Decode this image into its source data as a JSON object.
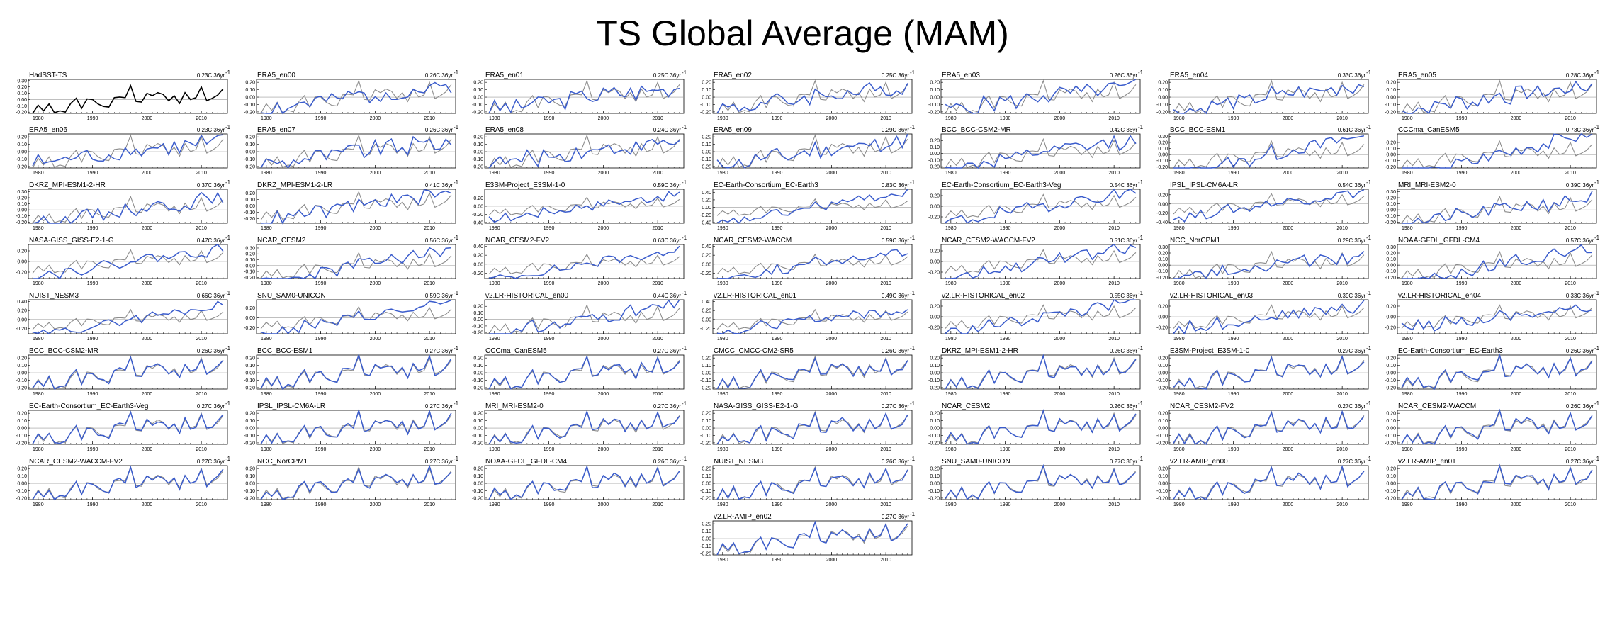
{
  "figure": {
    "title": "TS Global Average (MAM)"
  },
  "colors": {
    "observation": "#000000",
    "model": "#3a5ccc",
    "reference": "#8c8c8c",
    "zero_line": "#999999"
  },
  "chart_data": {
    "type": "line",
    "x": [
      1979,
      1980,
      1981,
      1982,
      1983,
      1984,
      1985,
      1986,
      1987,
      1988,
      1989,
      1990,
      1991,
      1992,
      1993,
      1994,
      1995,
      1996,
      1997,
      1998,
      1999,
      2000,
      2001,
      2002,
      2003,
      2004,
      2005,
      2006,
      2007,
      2008,
      2009,
      2010,
      2011,
      2012,
      2013,
      2014
    ],
    "x_ticks": [
      "1980",
      "1990",
      "2000",
      "2010"
    ],
    "x_tick_values": [
      1980,
      1990,
      2000,
      2010
    ],
    "reference": {
      "name": "HadSST-TS",
      "values": [
        -0.22,
        -0.09,
        -0.18,
        -0.07,
        -0.21,
        -0.18,
        -0.2,
        -0.06,
        0.02,
        -0.14,
        0.01,
        0.0,
        -0.07,
        -0.11,
        -0.12,
        0.03,
        0.04,
        0.03,
        0.22,
        -0.03,
        -0.04,
        0.1,
        0.06,
        0.11,
        0.08,
        -0.02,
        0.06,
        -0.06,
        0.11,
        0.0,
        0.03,
        0.2,
        -0.02,
        0.02,
        0.07,
        0.17
      ]
    },
    "panels": [
      {
        "title": "HadSST-TS",
        "trend": "0.23C 36yr",
        "yticks": [
          "0.30",
          "0.20",
          "0.10",
          "0.00",
          "-0.10",
          "-0.20"
        ],
        "ylim": [
          -0.22,
          0.32
        ],
        "obs": true,
        "model_trend": 0.23,
        "seed": 0,
        "offset": 0.0
      },
      {
        "title": "ERA5_en00",
        "trend": "0.26C 36yr",
        "yticks": [
          "0.20",
          "0.10",
          "0.00",
          "-0.10",
          "-0.20"
        ],
        "ylim": [
          -0.22,
          0.24
        ],
        "model_trend": 0.26,
        "seed": 1
      },
      {
        "title": "ERA5_en01",
        "trend": "0.25C 36yr",
        "yticks": [
          "0.20",
          "0.10",
          "0.00",
          "-0.10",
          "-0.20"
        ],
        "ylim": [
          -0.22,
          0.24
        ],
        "model_trend": 0.25,
        "seed": 2
      },
      {
        "title": "ERA5_en02",
        "trend": "0.25C 36yr",
        "yticks": [
          "0.20",
          "0.10",
          "0.00",
          "-0.10",
          "-0.20"
        ],
        "ylim": [
          -0.22,
          0.24
        ],
        "model_trend": 0.25,
        "seed": 3
      },
      {
        "title": "ERA5_en03",
        "trend": "0.26C 36yr",
        "yticks": [
          "0.20",
          "0.10",
          "0.00",
          "-0.10",
          "-0.20"
        ],
        "ylim": [
          -0.22,
          0.24
        ],
        "model_trend": 0.26,
        "seed": 4
      },
      {
        "title": "ERA5_en04",
        "trend": "0.33C 36yr",
        "yticks": [
          "0.20",
          "0.10",
          "0.00",
          "-0.10",
          "-0.20"
        ],
        "ylim": [
          -0.22,
          0.24
        ],
        "model_trend": 0.33,
        "seed": 5
      },
      {
        "title": "ERA5_en05",
        "trend": "0.28C 36yr",
        "yticks": [
          "0.20",
          "0.10",
          "0.00",
          "-0.10",
          "-0.20"
        ],
        "ylim": [
          -0.22,
          0.24
        ],
        "model_trend": 0.28,
        "seed": 6
      },
      {
        "title": "ERA5_en06",
        "trend": "0.23C 36yr",
        "yticks": [
          "0.20",
          "0.10",
          "0.00",
          "-0.10",
          "-0.20"
        ],
        "ylim": [
          -0.22,
          0.24
        ],
        "model_trend": 0.23,
        "seed": 7
      },
      {
        "title": "ERA5_en07",
        "trend": "0.26C 36yr",
        "yticks": [
          "0.20",
          "0.10",
          "0.00",
          "-0.10",
          "-0.20"
        ],
        "ylim": [
          -0.22,
          0.24
        ],
        "model_trend": 0.26,
        "seed": 8
      },
      {
        "title": "ERA5_en08",
        "trend": "0.24C 36yr",
        "yticks": [
          "0.20",
          "0.10",
          "0.00",
          "-0.10",
          "-0.20"
        ],
        "ylim": [
          -0.22,
          0.24
        ],
        "model_trend": 0.24,
        "seed": 9
      },
      {
        "title": "ERA5_en09",
        "trend": "0.29C 36yr",
        "yticks": [
          "0.20",
          "0.10",
          "0.00",
          "-0.10",
          "-0.20"
        ],
        "ylim": [
          -0.22,
          0.24
        ],
        "model_trend": 0.29,
        "seed": 10
      },
      {
        "title": "BCC_BCC-CSM2-MR",
        "trend": "0.42C 36yr",
        "yticks": [
          "0.20",
          "0.10",
          "0.00",
          "-0.10",
          "-0.20"
        ],
        "ylim": [
          -0.22,
          0.3
        ],
        "model_trend": 0.42,
        "seed": 11
      },
      {
        "title": "BCC_BCC-ESM1",
        "trend": "0.61C 36yr",
        "yticks": [
          "0.30",
          "0.20",
          "0.10",
          "0.00",
          "-0.10",
          "-0.20"
        ],
        "ylim": [
          -0.22,
          0.34
        ],
        "model_trend": 0.61,
        "seed": 12
      },
      {
        "title": "CCCma_CanESM5",
        "trend": "0.73C 36yr",
        "yticks": [
          "0.20",
          "0.10",
          "0.00",
          "-0.10",
          "-0.20"
        ],
        "ylim": [
          -0.22,
          0.34
        ],
        "model_trend": 0.73,
        "seed": 13
      },
      {
        "title": "DKRZ_MPI-ESM1-2-HR",
        "trend": "0.37C 36yr",
        "yticks": [
          "0.30",
          "0.20",
          "0.10",
          "0.00",
          "-0.10",
          "-0.20"
        ],
        "ylim": [
          -0.22,
          0.34
        ],
        "model_trend": 0.37,
        "seed": 14
      },
      {
        "title": "DKRZ_MPI-ESM1-2-LR",
        "trend": "0.41C 36yr",
        "yticks": [
          "0.20",
          "0.10",
          "0.00",
          "-0.10",
          "-0.20"
        ],
        "ylim": [
          -0.27,
          0.26
        ],
        "model_trend": 0.41,
        "seed": 15
      },
      {
        "title": "E3SM-Project_E3SM-1-0",
        "trend": "0.59C 36yr",
        "yticks": [
          "0.20",
          "0.00",
          "-0.20",
          "-0.40"
        ],
        "ylim": [
          -0.42,
          0.42
        ],
        "model_trend": 0.59,
        "seed": 16
      },
      {
        "title": "EC-Earth-Consortium_EC-Earth3",
        "trend": "0.83C 36yr",
        "yticks": [
          "0.40",
          "0.20",
          "0.00",
          "-0.20",
          "-0.40"
        ],
        "ylim": [
          -0.42,
          0.48
        ],
        "model_trend": 0.83,
        "seed": 17
      },
      {
        "title": "EC-Earth-Consortium_EC-Earth3-Veg",
        "trend": "0.54C 36yr",
        "yticks": [
          "0.20",
          "0.00",
          "-0.20"
        ],
        "ylim": [
          -0.32,
          0.32
        ],
        "model_trend": 0.54,
        "seed": 18
      },
      {
        "title": "IPSL_IPSL-CM6A-LR",
        "trend": "0.54C 36yr",
        "yticks": [
          "0.20",
          "0.00",
          "-0.20",
          "-0.40"
        ],
        "ylim": [
          -0.42,
          0.32
        ],
        "model_trend": 0.54,
        "seed": 19
      },
      {
        "title": "MRI_MRI-ESM2-0",
        "trend": "0.39C 36yr",
        "yticks": [
          "0.30",
          "0.20",
          "0.10",
          "0.00",
          "-0.10",
          "-0.20"
        ],
        "ylim": [
          -0.22,
          0.34
        ],
        "model_trend": 0.39,
        "seed": 20
      },
      {
        "title": "NASA-GISS_GISS-E2-1-G",
        "trend": "0.47C 36yr",
        "yticks": [
          "0.20",
          "0.00",
          "-0.20"
        ],
        "ylim": [
          -0.32,
          0.32
        ],
        "model_trend": 0.47,
        "seed": 21
      },
      {
        "title": "NCAR_CESM2",
        "trend": "0.56C 36yr",
        "yticks": [
          "0.30",
          "0.20",
          "0.10",
          "0.00",
          "-0.10",
          "-0.20"
        ],
        "ylim": [
          -0.22,
          0.36
        ],
        "model_trend": 0.56,
        "seed": 22
      },
      {
        "title": "NCAR_CESM2-FV2",
        "trend": "0.63C 36yr",
        "yticks": [
          "0.40",
          "0.20",
          "0.00",
          "-0.20"
        ],
        "ylim": [
          -0.32,
          0.44
        ],
        "model_trend": 0.63,
        "seed": 23
      },
      {
        "title": "NCAR_CESM2-WACCM",
        "trend": "0.59C 36yr",
        "yticks": [
          "0.40",
          "0.20",
          "0.00",
          "-0.20"
        ],
        "ylim": [
          -0.32,
          0.44
        ],
        "model_trend": 0.59,
        "seed": 24
      },
      {
        "title": "NCAR_CESM2-WACCM-FV2",
        "trend": "0.51C 36yr",
        "yticks": [
          "0.20",
          "0.00",
          "-0.20"
        ],
        "ylim": [
          -0.32,
          0.32
        ],
        "model_trend": 0.51,
        "seed": 25
      },
      {
        "title": "NCC_NorCPM1",
        "trend": "0.29C 36yr",
        "yticks": [
          "0.30",
          "0.20",
          "0.10",
          "0.00",
          "-0.10",
          "-0.20"
        ],
        "ylim": [
          -0.22,
          0.34
        ],
        "model_trend": 0.29,
        "seed": 26
      },
      {
        "title": "NOAA-GFDL_GFDL-CM4",
        "trend": "0.57C 36yr",
        "yticks": [
          "0.30",
          "0.20",
          "0.10",
          "0.00",
          "-0.10",
          "-0.20"
        ],
        "ylim": [
          -0.22,
          0.34
        ],
        "model_trend": 0.57,
        "seed": 27
      },
      {
        "title": "NUIST_NESM3",
        "trend": "0.66C 36yr",
        "yticks": [
          "0.40",
          "0.20",
          "0.00",
          "-0.20"
        ],
        "ylim": [
          -0.32,
          0.44
        ],
        "model_trend": 0.66,
        "seed": 28
      },
      {
        "title": "SNU_SAM0-UNICON",
        "trend": "0.59C 36yr",
        "yticks": [
          "0.20",
          "0.00",
          "-0.20"
        ],
        "ylim": [
          -0.32,
          0.36
        ],
        "model_trend": 0.59,
        "seed": 29
      },
      {
        "title": "v2.LR-HISTORICAL_en00",
        "trend": "0.44C 36yr",
        "yticks": [
          "0.20",
          "0.10",
          "0.00",
          "-0.10",
          "-0.20"
        ],
        "ylim": [
          -0.22,
          0.3
        ],
        "model_trend": 0.44,
        "seed": 30
      },
      {
        "title": "v2.LR-HISTORICAL_en01",
        "trend": "0.49C 36yr",
        "yticks": [
          "0.40",
          "0.20",
          "0.00",
          "-0.20"
        ],
        "ylim": [
          -0.32,
          0.44
        ],
        "model_trend": 0.49,
        "seed": 31
      },
      {
        "title": "v2.LR-HISTORICAL_en02",
        "trend": "0.55C 36yr",
        "yticks": [
          "0.20",
          "0.00",
          "-0.20"
        ],
        "ylim": [
          -0.32,
          0.32
        ],
        "model_trend": 0.55,
        "seed": 32
      },
      {
        "title": "v2.LR-HISTORICAL_en03",
        "trend": "0.39C 36yr",
        "yticks": [
          "0.20",
          "0.00",
          "-0.20"
        ],
        "ylim": [
          -0.32,
          0.32
        ],
        "model_trend": 0.39,
        "seed": 33
      },
      {
        "title": "v2.LR-HISTORICAL_en04",
        "trend": "0.33C 36yr",
        "yticks": [
          "0.20",
          "0.00",
          "-0.20"
        ],
        "ylim": [
          -0.32,
          0.32
        ],
        "model_trend": 0.33,
        "seed": 34
      },
      {
        "title": "BCC_BCC-CSM2-MR",
        "trend": "0.26C 36yr",
        "yticks": [
          "0.20",
          "0.10",
          "0.00",
          "-0.10",
          "-0.20"
        ],
        "ylim": [
          -0.22,
          0.24
        ],
        "model_trend": 0.26,
        "seed": 35,
        "amip": true
      },
      {
        "title": "BCC_BCC-ESM1",
        "trend": "0.27C 36yr",
        "yticks": [
          "0.20",
          "0.10",
          "0.00",
          "-0.10",
          "-0.20"
        ],
        "ylim": [
          -0.22,
          0.24
        ],
        "model_trend": 0.27,
        "seed": 36,
        "amip": true
      },
      {
        "title": "CCCma_CanESM5",
        "trend": "0.27C 36yr",
        "yticks": [
          "0.20",
          "0.10",
          "0.00",
          "-0.10",
          "-0.20"
        ],
        "ylim": [
          -0.22,
          0.24
        ],
        "model_trend": 0.27,
        "seed": 37,
        "amip": true
      },
      {
        "title": "CMCC_CMCC-CM2-SR5",
        "trend": "0.26C 36yr",
        "yticks": [
          "0.20",
          "0.10",
          "0.00",
          "-0.10",
          "-0.20"
        ],
        "ylim": [
          -0.22,
          0.24
        ],
        "model_trend": 0.26,
        "seed": 38,
        "amip": true
      },
      {
        "title": "DKRZ_MPI-ESM1-2-HR",
        "trend": "0.26C 36yr",
        "yticks": [
          "0.20",
          "0.10",
          "0.00",
          "-0.10",
          "-0.20"
        ],
        "ylim": [
          -0.22,
          0.24
        ],
        "model_trend": 0.26,
        "seed": 39,
        "amip": true
      },
      {
        "title": "E3SM-Project_E3SM-1-0",
        "trend": "0.27C 36yr",
        "yticks": [
          "0.20",
          "0.10",
          "0.00",
          "-0.10",
          "-0.20"
        ],
        "ylim": [
          -0.22,
          0.24
        ],
        "model_trend": 0.27,
        "seed": 40,
        "amip": true
      },
      {
        "title": "EC-Earth-Consortium_EC-Earth3",
        "trend": "0.26C 36yr",
        "yticks": [
          "0.20",
          "0.10",
          "0.00",
          "-0.10",
          "-0.20"
        ],
        "ylim": [
          -0.22,
          0.24
        ],
        "model_trend": 0.26,
        "seed": 41,
        "amip": true
      },
      {
        "title": "EC-Earth-Consortium_EC-Earth3-Veg",
        "trend": "0.27C 36yr",
        "yticks": [
          "0.20",
          "0.10",
          "0.00",
          "-0.10",
          "-0.20"
        ],
        "ylim": [
          -0.22,
          0.24
        ],
        "model_trend": 0.27,
        "seed": 42,
        "amip": true
      },
      {
        "title": "IPSL_IPSL-CM6A-LR",
        "trend": "0.27C 36yr",
        "yticks": [
          "0.20",
          "0.10",
          "0.00",
          "-0.10",
          "-0.20"
        ],
        "ylim": [
          -0.22,
          0.24
        ],
        "model_trend": 0.27,
        "seed": 43,
        "amip": true
      },
      {
        "title": "MRI_MRI-ESM2-0",
        "trend": "0.27C 36yr",
        "yticks": [
          "0.20",
          "0.10",
          "0.00",
          "-0.10",
          "-0.20"
        ],
        "ylim": [
          -0.22,
          0.24
        ],
        "model_trend": 0.27,
        "seed": 44,
        "amip": true
      },
      {
        "title": "NASA-GISS_GISS-E2-1-G",
        "trend": "0.27C 36yr",
        "yticks": [
          "0.20",
          "0.10",
          "0.00",
          "-0.10",
          "-0.20"
        ],
        "ylim": [
          -0.22,
          0.24
        ],
        "model_trend": 0.27,
        "seed": 45,
        "amip": true
      },
      {
        "title": "NCAR_CESM2",
        "trend": "0.26C 36yr",
        "yticks": [
          "0.20",
          "0.10",
          "0.00",
          "-0.10",
          "-0.20"
        ],
        "ylim": [
          -0.22,
          0.24
        ],
        "model_trend": 0.26,
        "seed": 46,
        "amip": true
      },
      {
        "title": "NCAR_CESM2-FV2",
        "trend": "0.27C 36yr",
        "yticks": [
          "0.20",
          "0.10",
          "0.00",
          "-0.10",
          "-0.20"
        ],
        "ylim": [
          -0.22,
          0.24
        ],
        "model_trend": 0.27,
        "seed": 47,
        "amip": true
      },
      {
        "title": "NCAR_CESM2-WACCM",
        "trend": "0.26C 36yr",
        "yticks": [
          "0.20",
          "0.10",
          "0.00",
          "-0.10",
          "-0.20"
        ],
        "ylim": [
          -0.22,
          0.24
        ],
        "model_trend": 0.26,
        "seed": 48,
        "amip": true
      },
      {
        "title": "NCAR_CESM2-WACCM-FV2",
        "trend": "0.27C 36yr",
        "yticks": [
          "0.20",
          "0.10",
          "0.00",
          "-0.10",
          "-0.20"
        ],
        "ylim": [
          -0.22,
          0.24
        ],
        "model_trend": 0.27,
        "seed": 49,
        "amip": true
      },
      {
        "title": "NCC_NorCPM1",
        "trend": "0.27C 36yr",
        "yticks": [
          "0.20",
          "0.10",
          "0.00",
          "-0.10",
          "-0.20"
        ],
        "ylim": [
          -0.22,
          0.24
        ],
        "model_trend": 0.27,
        "seed": 50,
        "amip": true
      },
      {
        "title": "NOAA-GFDL_GFDL-CM4",
        "trend": "0.26C 36yr",
        "yticks": [
          "0.20",
          "0.10",
          "0.00",
          "-0.10",
          "-0.20"
        ],
        "ylim": [
          -0.22,
          0.24
        ],
        "model_trend": 0.26,
        "seed": 51,
        "amip": true
      },
      {
        "title": "NUIST_NESM3",
        "trend": "0.26C 36yr",
        "yticks": [
          "0.20",
          "0.10",
          "0.00",
          "-0.10",
          "-0.20"
        ],
        "ylim": [
          -0.22,
          0.24
        ],
        "model_trend": 0.26,
        "seed": 52,
        "amip": true
      },
      {
        "title": "SNU_SAM0-UNICON",
        "trend": "0.27C 36yr",
        "yticks": [
          "0.20",
          "0.10",
          "0.00",
          "-0.10",
          "-0.20"
        ],
        "ylim": [
          -0.22,
          0.24
        ],
        "model_trend": 0.27,
        "seed": 53,
        "amip": true
      },
      {
        "title": "v2.LR-AMIP_en00",
        "trend": "0.27C 36yr",
        "yticks": [
          "0.20",
          "0.10",
          "0.00",
          "-0.10",
          "-0.20"
        ],
        "ylim": [
          -0.22,
          0.24
        ],
        "model_trend": 0.27,
        "seed": 54,
        "amip": true
      },
      {
        "title": "v2.LR-AMIP_en01",
        "trend": "0.27C 36yr",
        "yticks": [
          "0.20",
          "0.10",
          "0.00",
          "-0.10",
          "-0.20"
        ],
        "ylim": [
          -0.22,
          0.24
        ],
        "model_trend": 0.27,
        "seed": 55,
        "amip": true
      },
      {
        "title": "v2.LR-AMIP_en02",
        "trend": "0.27C 36yr",
        "yticks": [
          "0.20",
          "0.10",
          "0.00",
          "-0.10",
          "-0.20"
        ],
        "ylim": [
          -0.22,
          0.24
        ],
        "model_trend": 0.27,
        "seed": 56,
        "amip": true
      }
    ]
  }
}
